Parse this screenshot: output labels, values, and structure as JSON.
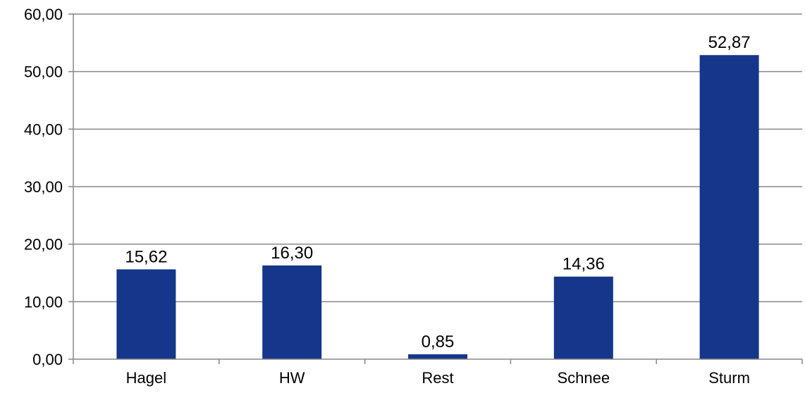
{
  "chart_data": {
    "type": "bar",
    "categories": [
      "Hagel",
      "HW",
      "Rest",
      "Schnee",
      "Sturm"
    ],
    "values": [
      15.62,
      16.3,
      0.85,
      14.36,
      52.87
    ],
    "value_labels": [
      "15,62",
      "16,30",
      "0,85",
      "14,36",
      "52,87"
    ],
    "yticks": [
      0,
      10,
      20,
      30,
      40,
      50,
      60
    ],
    "ytick_labels": [
      "0,00",
      "10,00",
      "20,00",
      "30,00",
      "40,00",
      "50,00",
      "60,00"
    ],
    "ylim": [
      0,
      60
    ],
    "grid": true,
    "title": "",
    "xlabel": "",
    "ylabel": ""
  },
  "colors": {
    "bar": "#15368A",
    "grid": "#888888",
    "axis": "#888888",
    "text": "#000000"
  }
}
